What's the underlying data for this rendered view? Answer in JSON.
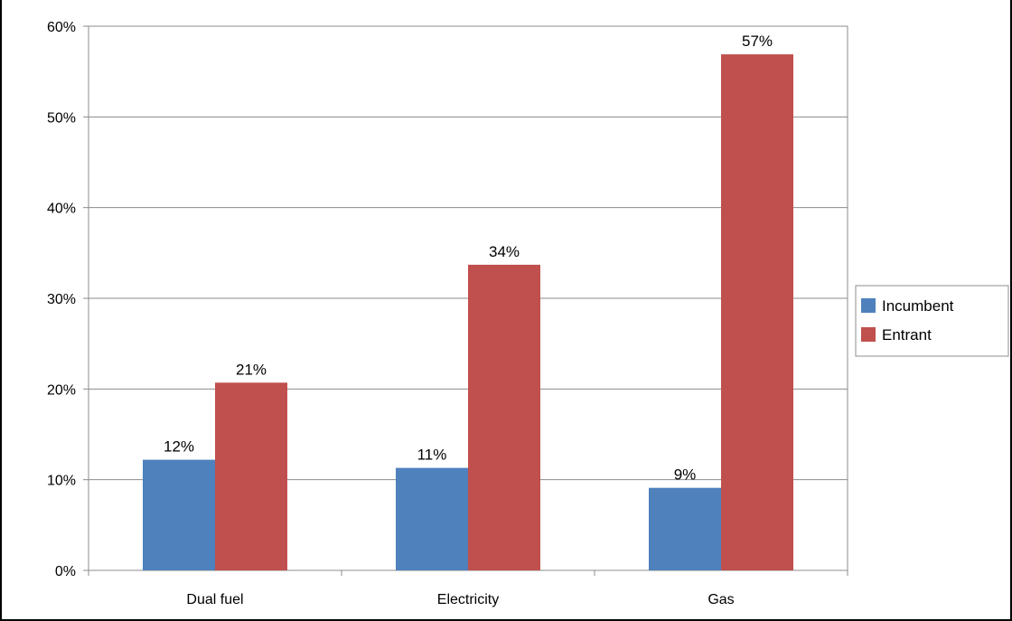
{
  "chart_data": {
    "type": "bar",
    "title": "",
    "xlabel": "",
    "ylabel": "",
    "categories": [
      "Dual fuel",
      "Electricity",
      "Gas"
    ],
    "series": [
      {
        "name": "Incumbent",
        "values": [
          12.2,
          11.3,
          9.1
        ],
        "labels": [
          "12%",
          "11%",
          "9%"
        ],
        "color": "#4f81bd"
      },
      {
        "name": "Entrant",
        "values": [
          20.7,
          33.7,
          56.9
        ],
        "labels": [
          "21%",
          "34%",
          "57%"
        ],
        "color": "#c0504d"
      }
    ],
    "ylim": [
      0,
      60
    ],
    "yticks": [
      0,
      10,
      20,
      30,
      40,
      50,
      60
    ],
    "ytick_labels": [
      "0%",
      "10%",
      "20%",
      "30%",
      "40%",
      "50%",
      "60%"
    ],
    "grid": true,
    "legend_position": "right"
  }
}
